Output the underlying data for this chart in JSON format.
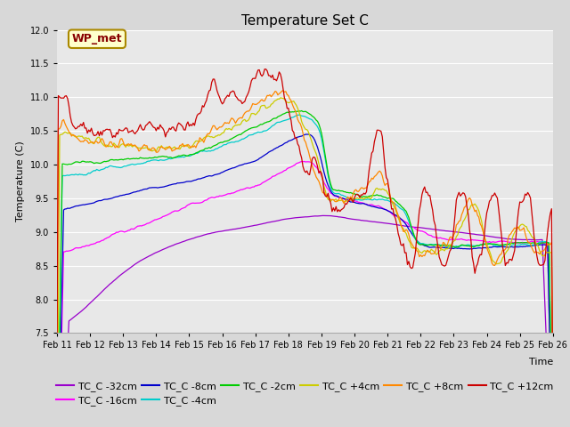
{
  "title": "Temperature Set C",
  "xlabel": "Time",
  "ylabel": "Temperature (C)",
  "ylim": [
    7.5,
    12.0
  ],
  "xlim": [
    0,
    375
  ],
  "x_tick_labels": [
    "Feb 11",
    "Feb 12",
    "Feb 13",
    "Feb 14",
    "Feb 15",
    "Feb 16",
    "Feb 17",
    "Feb 18",
    "Feb 19",
    "Feb 20",
    "Feb 21",
    "Feb 22",
    "Feb 23",
    "Feb 24",
    "Feb 25",
    "Feb 26"
  ],
  "x_tick_positions": [
    0,
    25,
    50,
    75,
    100,
    125,
    150,
    175,
    200,
    225,
    250,
    275,
    300,
    325,
    350,
    375
  ],
  "wp_met_label": "WP_met",
  "legend_entries": [
    {
      "label": "TC_C -32cm",
      "color": "#9900cc"
    },
    {
      "label": "TC_C -16cm",
      "color": "#ff00ff"
    },
    {
      "label": "TC_C -8cm",
      "color": "#0000cc"
    },
    {
      "label": "TC_C -4cm",
      "color": "#00cccc"
    },
    {
      "label": "TC_C -2cm",
      "color": "#00cc00"
    },
    {
      "label": "TC_C +4cm",
      "color": "#cccc00"
    },
    {
      "label": "TC_C +8cm",
      "color": "#ff8800"
    },
    {
      "label": "TC_C +12cm",
      "color": "#cc0000"
    }
  ],
  "fig_facecolor": "#d8d8d8",
  "ax_facecolor": "#e8e8e8",
  "title_fontsize": 11,
  "axis_fontsize": 8,
  "legend_fontsize": 8,
  "tick_fontsize": 7
}
